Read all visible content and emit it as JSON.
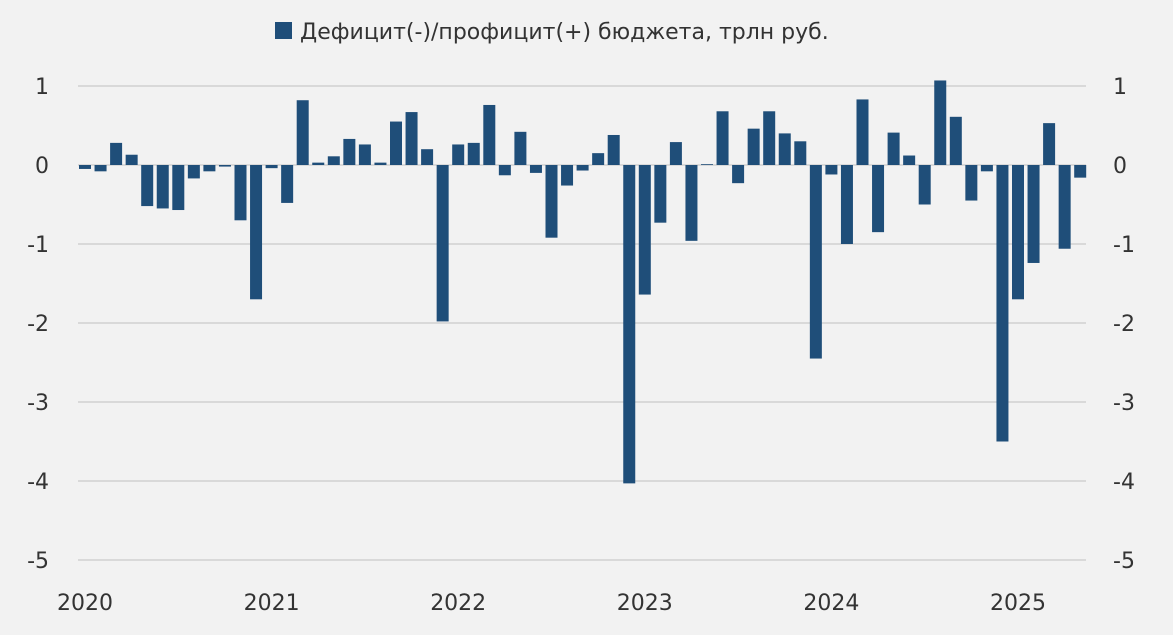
{
  "chart_data": {
    "type": "bar",
    "legend": {
      "label": "Дефицит(-)/профицит(+) бюджета, трлн руб.",
      "color": "#1f4e79",
      "placement": "top-center"
    },
    "ylim": [
      -5,
      1
    ],
    "y_ticks": [
      1,
      0,
      -1,
      -2,
      -3,
      -4,
      -5
    ],
    "y_tick_labels": [
      "1",
      "0",
      "-1",
      "-2",
      "-3",
      "-4",
      "-5"
    ],
    "secondary_y_tick_labels": [
      "1",
      "0",
      "-1",
      "-2",
      "-3",
      "-4",
      "-5"
    ],
    "grid": true,
    "x_tick_labels": [
      "2020",
      "2021",
      "2022",
      "2023",
      "2024",
      "2025"
    ],
    "bar_color": "#1f4e79",
    "series": [
      {
        "values": [
          -0.05,
          -0.08,
          0.28,
          0.13,
          -0.52,
          -0.55,
          -0.57,
          -0.17,
          -0.08,
          -0.02,
          -0.7,
          -1.7,
          -0.04,
          -0.48,
          0.82,
          0.03,
          0.11,
          0.33,
          0.26,
          0.03,
          0.55,
          0.67,
          0.2,
          -1.98,
          0.26,
          0.28,
          0.76,
          -0.13,
          0.42,
          -0.1,
          -0.92,
          -0.26,
          -0.07,
          0.15,
          0.38,
          -4.03,
          -1.64,
          -0.73,
          0.29,
          -0.96,
          0.01,
          0.68,
          -0.23,
          0.46,
          0.68,
          0.4,
          0.3,
          -2.45,
          -0.12,
          -1.0,
          0.83,
          -0.85,
          0.41,
          0.12,
          -0.5,
          1.07,
          0.61,
          -0.45,
          -0.08,
          -3.5,
          -1.7,
          -1.24,
          0.53,
          -1.06,
          -0.16
        ]
      }
    ]
  }
}
